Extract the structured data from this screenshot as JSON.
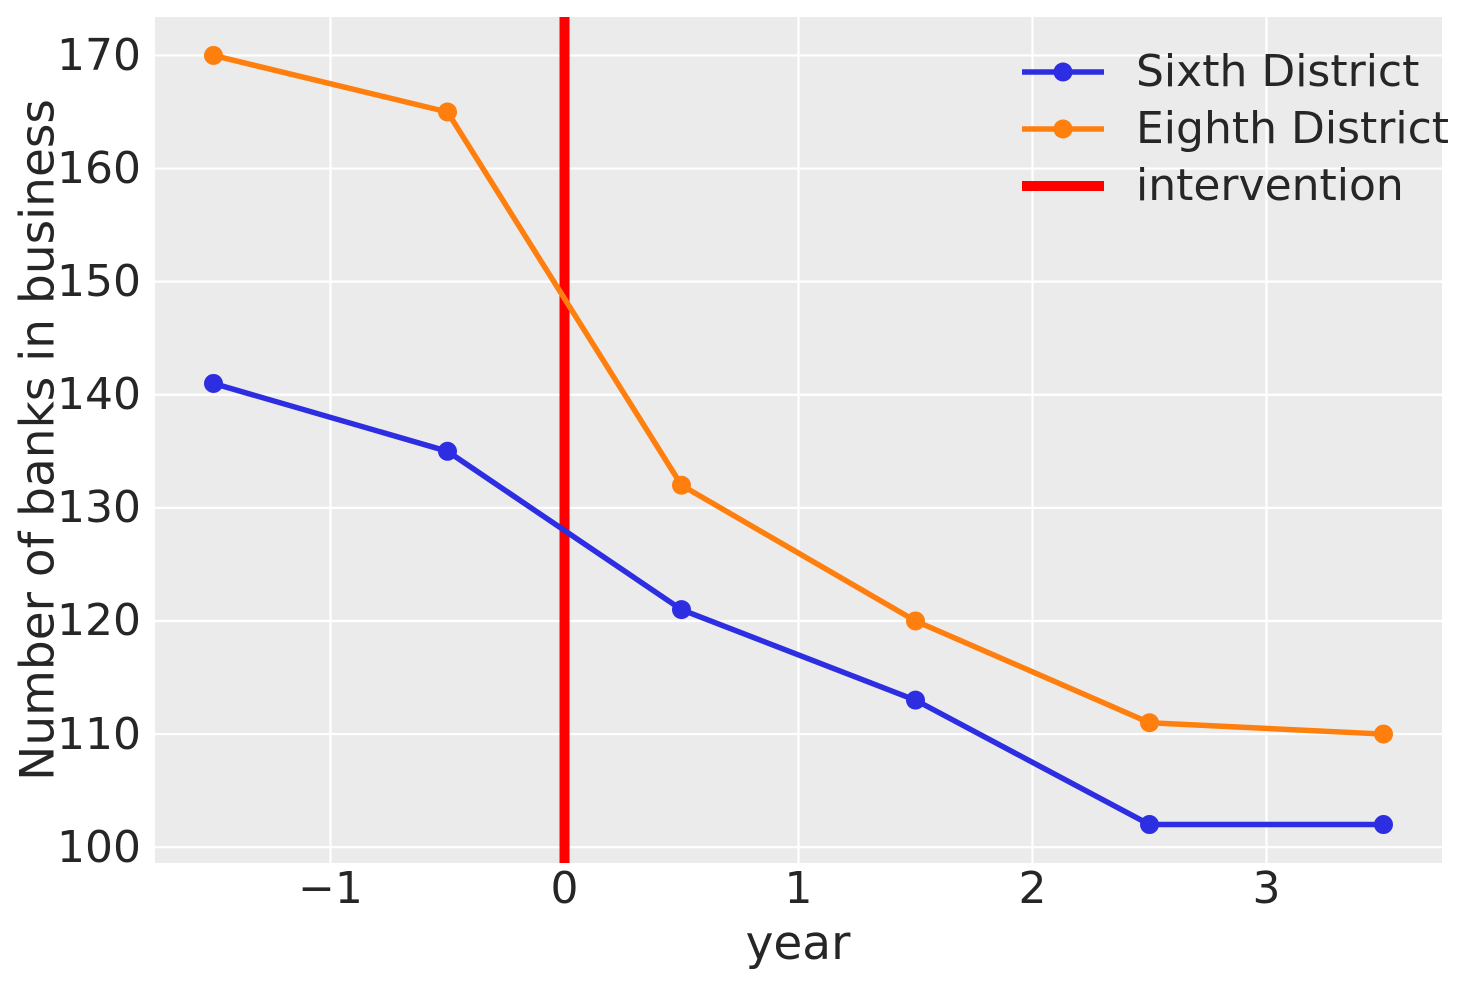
{
  "chart_data": {
    "type": "line",
    "title": "",
    "xlabel": "year",
    "ylabel": "Number of banks in business",
    "x": [
      -1.5,
      -0.5,
      0.5,
      1.5,
      2.5,
      3.5
    ],
    "series": [
      {
        "name": "Sixth District",
        "color": "#2d2de1",
        "marker": "circle",
        "values": [
          141,
          135,
          121,
          113,
          102,
          102
        ]
      },
      {
        "name": "Eighth District",
        "color": "#ff7f0e",
        "marker": "circle",
        "values": [
          170,
          165,
          132,
          120,
          111,
          110
        ]
      }
    ],
    "vline": {
      "name": "intervention",
      "color": "#ff0000",
      "x": 0
    },
    "xlim": [
      -1.75,
      3.75
    ],
    "ylim": [
      98.6,
      173.4
    ],
    "xticks": {
      "values": [
        -1,
        0,
        1,
        2,
        3
      ],
      "labels": [
        "−1",
        "0",
        "1",
        "2",
        "3"
      ]
    },
    "yticks": {
      "values": [
        100,
        110,
        120,
        130,
        140,
        150,
        160,
        170
      ],
      "labels": [
        "100",
        "110",
        "120",
        "130",
        "140",
        "150",
        "160",
        "170"
      ]
    },
    "grid": true,
    "legend_position": "upper right",
    "plot_bg": "#ebebeb",
    "grid_color": "#ffffff",
    "text_color": "#262626"
  }
}
